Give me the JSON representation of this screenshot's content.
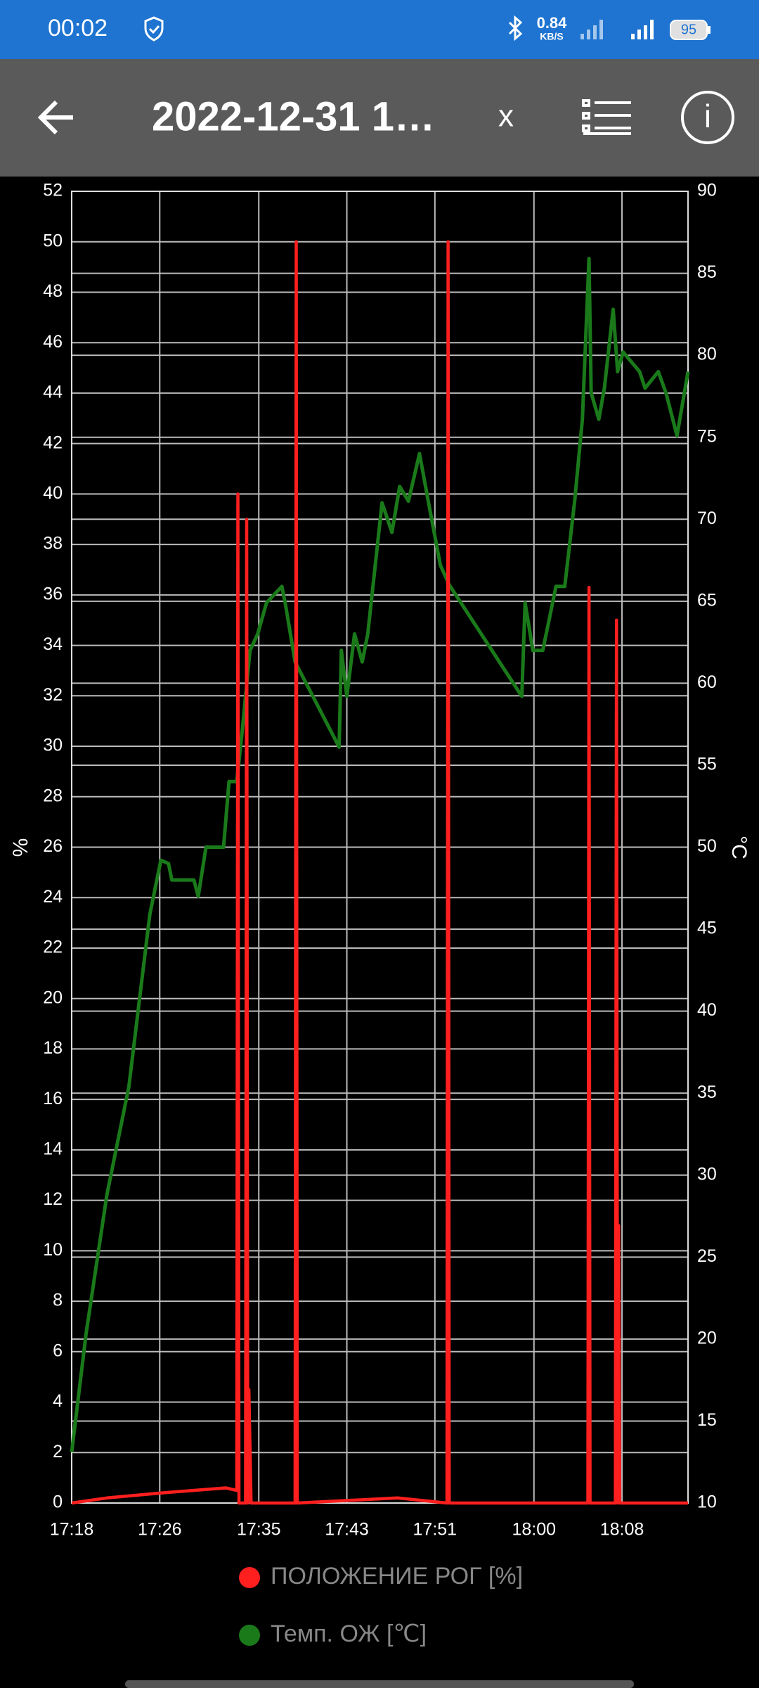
{
  "status_bar": {
    "time": "00:02",
    "speed": "0.84",
    "speed_unit": "KB/S",
    "battery": "95"
  },
  "toolbar": {
    "title": "2022-12-31 1…",
    "close": "x"
  },
  "chart_data": {
    "type": "line",
    "y_label": "%",
    "y2_label": "°C",
    "xlim": [
      1038,
      1094
    ],
    "xticks": [
      {
        "value": 1038,
        "label": "17:18"
      },
      {
        "value": 1046,
        "label": "17:26"
      },
      {
        "value": 1055,
        "label": "17:35"
      },
      {
        "value": 1063,
        "label": "17:43"
      },
      {
        "value": 1071,
        "label": "17:51"
      },
      {
        "value": 1080,
        "label": "18:00"
      },
      {
        "value": 1088,
        "label": "18:08"
      }
    ],
    "ylim": [
      0,
      52
    ],
    "yticks": [
      0,
      2,
      4,
      6,
      8,
      10,
      12,
      14,
      16,
      18,
      20,
      22,
      24,
      26,
      28,
      30,
      32,
      34,
      36,
      38,
      40,
      42,
      44,
      46,
      48,
      50,
      52
    ],
    "y2lim": [
      10,
      90
    ],
    "y2ticks": [
      10,
      15,
      20,
      25,
      30,
      35,
      40,
      45,
      50,
      55,
      60,
      65,
      70,
      75,
      80,
      85,
      90
    ],
    "grid": true,
    "series": [
      {
        "name": "ПОЛОЖЕНИЕ РОГ [%]",
        "color": "#ff1f1f",
        "x": [
          1038.0,
          1041.2,
          1046.1,
          1052.0,
          1053.0,
          1053.1,
          1053.2,
          1053.8,
          1053.9,
          1054.0,
          1054.1,
          1054.3,
          1058.3,
          1058.4,
          1058.5,
          1067.6,
          1072.1,
          1072.2,
          1072.3,
          1084.9,
          1085.0,
          1085.1,
          1087.4,
          1087.5,
          1087.6,
          1087.7,
          1087.8,
          1094.0
        ],
        "values": [
          0,
          0.2,
          0.4,
          0.6,
          0.5,
          40,
          0,
          0,
          39,
          0,
          4.5,
          0,
          0,
          50,
          0,
          0.2,
          0,
          50,
          0,
          0,
          36.3,
          0,
          0,
          35,
          0,
          11,
          0,
          0
        ]
      },
      {
        "name": "Темп. ОЖ [℃]",
        "color": "#1a7a1a",
        "axis": "y2",
        "x": [
          1038.0,
          1039.3,
          1041.2,
          1043.2,
          1045.1,
          1046.1,
          1046.8,
          1047.1,
          1049.1,
          1049.5,
          1050.2,
          1051.8,
          1052.3,
          1053.0,
          1053.5,
          1054.2,
          1054.9,
          1055.7,
          1057.1,
          1057.4,
          1058.3,
          1062.3,
          1062.5,
          1063.0,
          1063.7,
          1064.4,
          1064.9,
          1066.2,
          1067.1,
          1067.8,
          1068.6,
          1069.6,
          1070.4,
          1071.5,
          1072.3,
          1078.9,
          1079.2,
          1079.9,
          1080.8,
          1081.3,
          1082.0,
          1082.8,
          1083.7,
          1084.4,
          1085.0,
          1085.2,
          1085.9,
          1086.4,
          1087.2,
          1087.6,
          1088.1,
          1089.6,
          1090.1,
          1091.3,
          1092.0,
          1093.0,
          1094.0
        ],
        "values": [
          13.1,
          20.3,
          28.8,
          35.4,
          45.9,
          49.2,
          49.0,
          48.0,
          48.0,
          47.0,
          50.0,
          50.0,
          54.0,
          54.0,
          57.1,
          62.0,
          63.0,
          64.9,
          65.9,
          64.9,
          61.3,
          56.1,
          62.0,
          59.2,
          63.0,
          61.3,
          63.0,
          71.0,
          69.2,
          72.0,
          71.1,
          74.0,
          71.1,
          67.2,
          66.0,
          59.2,
          64.9,
          62.0,
          62.0,
          63.6,
          65.9,
          65.9,
          71.1,
          76.1,
          85.9,
          77.7,
          76.1,
          78.0,
          82.8,
          79.0,
          80.2,
          79.0,
          78.0,
          79.0,
          77.7,
          75.1,
          79.0
        ]
      }
    ]
  }
}
